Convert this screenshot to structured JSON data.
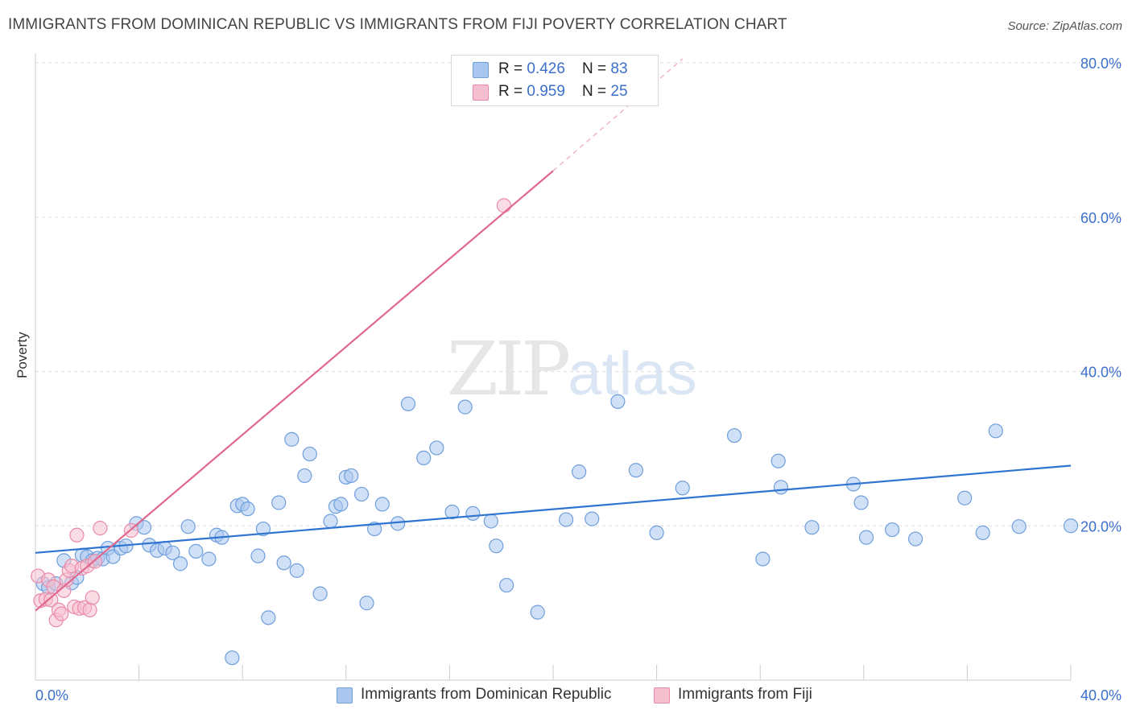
{
  "title": "IMMIGRANTS FROM DOMINICAN REPUBLIC VS IMMIGRANTS FROM FIJI POVERTY CORRELATION CHART",
  "source": "Source: ZipAtlas.com",
  "watermark": {
    "zip": "ZIP",
    "atlas": "atlas"
  },
  "legend_top": [
    {
      "r_label": "R = ",
      "r_value": "0.426",
      "n_label": "N = ",
      "n_value": "83"
    },
    {
      "r_label": "R = ",
      "r_value": "0.959",
      "n_label": "N = ",
      "n_value": "25"
    }
  ],
  "colors": {
    "blue_fill": "#a9c7ee",
    "blue_stroke": "#6f9fdc",
    "blue_line": "#2f74d0",
    "pink_fill": "#f6bfd0",
    "pink_stroke": "#e98aa8",
    "pink_line": "#e0688e",
    "grid": "#dddddd",
    "tick_label": "#3a6fcc",
    "axis": "#cccccc"
  },
  "chart_data": {
    "type": "scatter",
    "title": "IMMIGRANTS FROM DOMINICAN REPUBLIC VS IMMIGRANTS FROM FIJI POVERTY CORRELATION CHART",
    "xlabel": "",
    "ylabel": "Poverty",
    "xlim": [
      0,
      40
    ],
    "ylim": [
      0,
      80
    ],
    "x_tick_labels": [
      "0.0%",
      "40.0%"
    ],
    "y_tick_labels": [
      "20.0%",
      "40.0%",
      "60.0%",
      "80.0%"
    ],
    "y_ticks": [
      20,
      40,
      60,
      80
    ],
    "grid": true,
    "legend_position": "bottom",
    "series": [
      {
        "name": "Immigrants from Dominican Republic",
        "color": "#6f9fdc",
        "x": [
          0.3,
          0.5,
          0.8,
          1.1,
          1.4,
          1.6,
          1.8,
          2.0,
          2.2,
          2.4,
          2.6,
          2.8,
          3.0,
          3.3,
          3.5,
          3.9,
          4.2,
          4.4,
          4.7,
          5.0,
          5.3,
          5.6,
          5.9,
          6.2,
          6.7,
          7.0,
          7.2,
          7.6,
          7.8,
          8.0,
          8.2,
          8.6,
          8.8,
          9.0,
          9.4,
          9.6,
          9.9,
          10.1,
          10.4,
          10.6,
          11.0,
          11.4,
          11.6,
          11.8,
          12.0,
          12.2,
          12.6,
          12.8,
          13.1,
          13.4,
          14.0,
          14.4,
          15.0,
          15.5,
          16.1,
          16.6,
          16.9,
          17.6,
          17.8,
          18.2,
          19.4,
          20.5,
          21.0,
          21.5,
          22.5,
          23.2,
          24.0,
          25.0,
          27.0,
          28.1,
          28.7,
          28.8,
          30.0,
          31.6,
          31.9,
          32.1,
          33.1,
          34.0,
          35.9,
          36.6,
          37.1,
          38.0,
          40.0
        ],
        "y": [
          12.5,
          12.0,
          12.5,
          15.5,
          12.6,
          13.3,
          16.2,
          16.0,
          15.5,
          15.8,
          15.7,
          17.1,
          16.0,
          17.1,
          17.4,
          20.3,
          19.8,
          17.5,
          16.8,
          17.1,
          16.5,
          15.1,
          19.9,
          16.7,
          15.7,
          18.8,
          18.5,
          2.9,
          22.6,
          22.8,
          22.2,
          16.1,
          19.6,
          8.1,
          23.0,
          15.2,
          31.2,
          14.2,
          26.5,
          29.3,
          11.2,
          20.6,
          22.5,
          22.8,
          26.3,
          26.5,
          24.1,
          10.0,
          19.6,
          22.8,
          20.3,
          35.8,
          28.8,
          30.1,
          21.8,
          35.4,
          21.6,
          20.6,
          17.4,
          12.3,
          8.8,
          20.8,
          27.0,
          20.9,
          36.1,
          27.2,
          19.1,
          24.9,
          31.7,
          15.7,
          28.4,
          25.0,
          19.8,
          25.4,
          23.0,
          18.5,
          19.5,
          18.3,
          23.6,
          19.1,
          32.3,
          19.9,
          20.0
        ],
        "trend": {
          "x": [
            0,
            40
          ],
          "y": [
            16.5,
            27.8
          ]
        }
      },
      {
        "name": "Immigrants from Fiji",
        "color": "#e98aa8",
        "x": [
          0.1,
          0.2,
          0.4,
          0.5,
          0.6,
          0.7,
          0.8,
          0.9,
          1.0,
          1.1,
          1.2,
          1.3,
          1.4,
          1.5,
          1.6,
          1.7,
          1.8,
          1.9,
          2.0,
          2.1,
          2.2,
          2.3,
          2.5,
          3.7,
          18.1
        ],
        "y": [
          13.5,
          10.3,
          10.5,
          13.0,
          10.4,
          12.1,
          7.8,
          9.1,
          8.6,
          11.6,
          13.0,
          14.2,
          14.8,
          9.5,
          18.8,
          9.3,
          14.5,
          9.4,
          14.8,
          9.1,
          10.7,
          15.4,
          19.7,
          19.4,
          61.5
        ],
        "trend": {
          "x": [
            0,
            20
          ],
          "y": [
            9.0,
            66.0
          ]
        },
        "trend_dashed": {
          "x": [
            20,
            25
          ],
          "y": [
            66.0,
            80.5
          ]
        }
      }
    ]
  }
}
